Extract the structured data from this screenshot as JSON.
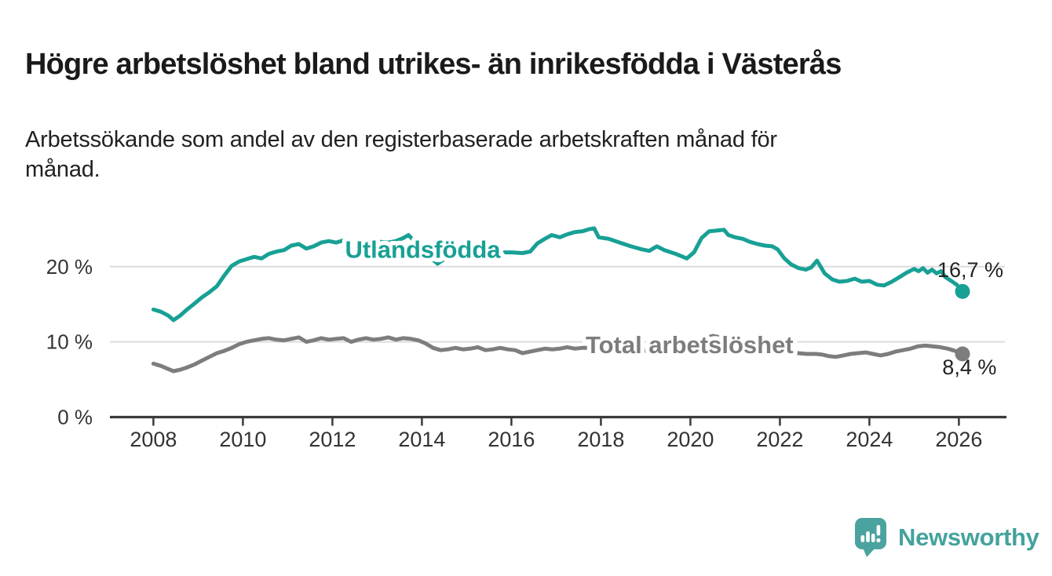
{
  "page": {
    "title": "Högre arbetslöshet bland utrikes- än inrikesfödda i Västerås",
    "subtitle": "Arbetssökande som andel av den registerbaserade arbetskraften månad för månad."
  },
  "footer": {
    "brand": "Newsworthy",
    "logo_icon": "bar-chart-speech-bubble-icon",
    "brand_color": "#45a29d",
    "logo_fill": "#4ba39f"
  },
  "chart_data": {
    "type": "line",
    "title": "Högre arbetslöshet bland utrikes- än inrikesfödda i Västerås",
    "subtitle": "Arbetssökande som andel av den registerbaserade arbetskraften månad för månad.",
    "grid": "horizontal",
    "legend_position": "inline-on-line",
    "x_axis": {
      "range": [
        2007.0,
        2027.1
      ],
      "ticks": [
        2008,
        2010,
        2012,
        2014,
        2016,
        2018,
        2020,
        2022,
        2024,
        2026
      ]
    },
    "y_axis": {
      "range": [
        0,
        26.3
      ],
      "unit": "%",
      "ticks": [
        {
          "value": 0,
          "label": "0 %"
        },
        {
          "value": 10,
          "label": "10 %"
        },
        {
          "value": 20,
          "label": "20 %"
        }
      ]
    },
    "colors": {
      "axis": "#3b3b3b",
      "gridline": "#dcdcdc",
      "tick_label": "#333333",
      "end_label_text": "#222222"
    },
    "series": [
      {
        "name": "Utlandsfödda",
        "color": "#18a095",
        "label_anchor": {
          "x": 2014.02,
          "y": 21.2
        },
        "end_value": 16.7,
        "end_label": {
          "text": "16,7 %",
          "x": 2025.52,
          "y": 18.6
        },
        "points": [
          [
            2008.0,
            14.3
          ],
          [
            2008.17,
            14.0
          ],
          [
            2008.33,
            13.5
          ],
          [
            2008.45,
            12.9
          ],
          [
            2008.6,
            13.5
          ],
          [
            2008.75,
            14.3
          ],
          [
            2008.92,
            15.1
          ],
          [
            2009.08,
            15.9
          ],
          [
            2009.25,
            16.6
          ],
          [
            2009.42,
            17.4
          ],
          [
            2009.58,
            18.8
          ],
          [
            2009.75,
            20.1
          ],
          [
            2009.92,
            20.7
          ],
          [
            2010.08,
            21.0
          ],
          [
            2010.25,
            21.3
          ],
          [
            2010.42,
            21.1
          ],
          [
            2010.58,
            21.7
          ],
          [
            2010.75,
            22.0
          ],
          [
            2010.92,
            22.2
          ],
          [
            2011.08,
            22.8
          ],
          [
            2011.25,
            23.0
          ],
          [
            2011.42,
            22.4
          ],
          [
            2011.58,
            22.7
          ],
          [
            2011.75,
            23.2
          ],
          [
            2011.92,
            23.4
          ],
          [
            2012.08,
            23.2
          ],
          [
            2012.25,
            23.5
          ],
          [
            2012.42,
            23.3
          ],
          [
            2012.58,
            23.4
          ],
          [
            2012.75,
            23.3
          ],
          [
            2012.92,
            23.4
          ],
          [
            2013.08,
            23.3
          ],
          [
            2013.25,
            23.2
          ],
          [
            2013.42,
            23.4
          ],
          [
            2013.58,
            23.8
          ],
          [
            2013.7,
            24.2
          ],
          [
            2013.83,
            23.4
          ],
          [
            2014.0,
            22.4
          ],
          [
            2014.17,
            21.3
          ],
          [
            2014.35,
            20.4
          ],
          [
            2014.5,
            21.0
          ],
          [
            2014.67,
            21.6
          ],
          [
            2014.83,
            21.9
          ],
          [
            2015.0,
            22.0
          ],
          [
            2015.25,
            21.9
          ],
          [
            2015.5,
            21.8
          ],
          [
            2015.75,
            21.9
          ],
          [
            2016.0,
            21.9
          ],
          [
            2016.25,
            21.8
          ],
          [
            2016.42,
            22.0
          ],
          [
            2016.58,
            23.1
          ],
          [
            2016.75,
            23.7
          ],
          [
            2016.9,
            24.2
          ],
          [
            2017.08,
            23.9
          ],
          [
            2017.25,
            24.3
          ],
          [
            2017.42,
            24.6
          ],
          [
            2017.58,
            24.7
          ],
          [
            2017.75,
            25.0
          ],
          [
            2017.85,
            25.1
          ],
          [
            2017.95,
            23.9
          ],
          [
            2018.17,
            23.7
          ],
          [
            2018.42,
            23.2
          ],
          [
            2018.67,
            22.7
          ],
          [
            2018.92,
            22.3
          ],
          [
            2019.08,
            22.1
          ],
          [
            2019.25,
            22.7
          ],
          [
            2019.42,
            22.2
          ],
          [
            2019.67,
            21.7
          ],
          [
            2019.92,
            21.1
          ],
          [
            2020.08,
            21.9
          ],
          [
            2020.25,
            23.8
          ],
          [
            2020.42,
            24.7
          ],
          [
            2020.6,
            24.8
          ],
          [
            2020.75,
            24.9
          ],
          [
            2020.85,
            24.2
          ],
          [
            2021.0,
            23.9
          ],
          [
            2021.17,
            23.7
          ],
          [
            2021.33,
            23.3
          ],
          [
            2021.5,
            23.0
          ],
          [
            2021.67,
            22.8
          ],
          [
            2021.83,
            22.7
          ],
          [
            2021.95,
            22.3
          ],
          [
            2022.1,
            21.1
          ],
          [
            2022.25,
            20.3
          ],
          [
            2022.42,
            19.8
          ],
          [
            2022.58,
            19.6
          ],
          [
            2022.7,
            19.9
          ],
          [
            2022.83,
            20.8
          ],
          [
            2023.0,
            19.1
          ],
          [
            2023.17,
            18.3
          ],
          [
            2023.33,
            18.0
          ],
          [
            2023.5,
            18.1
          ],
          [
            2023.67,
            18.4
          ],
          [
            2023.83,
            18.0
          ],
          [
            2024.0,
            18.1
          ],
          [
            2024.17,
            17.6
          ],
          [
            2024.33,
            17.5
          ],
          [
            2024.5,
            18.0
          ],
          [
            2024.67,
            18.6
          ],
          [
            2024.83,
            19.2
          ],
          [
            2025.0,
            19.7
          ],
          [
            2025.1,
            19.4
          ],
          [
            2025.2,
            19.8
          ],
          [
            2025.3,
            19.2
          ],
          [
            2025.4,
            19.6
          ],
          [
            2025.5,
            19.1
          ],
          [
            2025.6,
            19.4
          ],
          [
            2025.7,
            18.6
          ],
          [
            2025.83,
            18.1
          ],
          [
            2025.95,
            17.6
          ],
          [
            2026.08,
            16.7
          ]
        ]
      },
      {
        "name": "Total arbetslöshet",
        "color": "#7d7d7d",
        "label_anchor": {
          "x": 2019.98,
          "y": 8.5
        },
        "end_value": 8.4,
        "end_label": {
          "text": "8,4 %",
          "x": 2025.63,
          "y": 5.7
        },
        "points": [
          [
            2008.0,
            7.1
          ],
          [
            2008.17,
            6.8
          ],
          [
            2008.33,
            6.4
          ],
          [
            2008.45,
            6.1
          ],
          [
            2008.6,
            6.3
          ],
          [
            2008.75,
            6.6
          ],
          [
            2008.92,
            7.0
          ],
          [
            2009.08,
            7.5
          ],
          [
            2009.25,
            8.0
          ],
          [
            2009.42,
            8.5
          ],
          [
            2009.58,
            8.8
          ],
          [
            2009.75,
            9.2
          ],
          [
            2009.92,
            9.7
          ],
          [
            2010.08,
            10.0
          ],
          [
            2010.25,
            10.2
          ],
          [
            2010.42,
            10.4
          ],
          [
            2010.58,
            10.5
          ],
          [
            2010.75,
            10.3
          ],
          [
            2010.92,
            10.2
          ],
          [
            2011.08,
            10.4
          ],
          [
            2011.25,
            10.6
          ],
          [
            2011.42,
            10.0
          ],
          [
            2011.58,
            10.2
          ],
          [
            2011.75,
            10.5
          ],
          [
            2011.92,
            10.3
          ],
          [
            2012.08,
            10.4
          ],
          [
            2012.25,
            10.5
          ],
          [
            2012.42,
            10.0
          ],
          [
            2012.58,
            10.3
          ],
          [
            2012.75,
            10.5
          ],
          [
            2012.92,
            10.3
          ],
          [
            2013.08,
            10.4
          ],
          [
            2013.25,
            10.6
          ],
          [
            2013.42,
            10.3
          ],
          [
            2013.58,
            10.5
          ],
          [
            2013.75,
            10.4
          ],
          [
            2013.92,
            10.2
          ],
          [
            2014.08,
            9.8
          ],
          [
            2014.25,
            9.2
          ],
          [
            2014.42,
            8.9
          ],
          [
            2014.58,
            9.0
          ],
          [
            2014.75,
            9.2
          ],
          [
            2014.92,
            9.0
          ],
          [
            2015.08,
            9.1
          ],
          [
            2015.25,
            9.3
          ],
          [
            2015.42,
            8.9
          ],
          [
            2015.58,
            9.0
          ],
          [
            2015.75,
            9.2
          ],
          [
            2015.92,
            9.0
          ],
          [
            2016.08,
            8.9
          ],
          [
            2016.25,
            8.5
          ],
          [
            2016.42,
            8.7
          ],
          [
            2016.58,
            8.9
          ],
          [
            2016.75,
            9.1
          ],
          [
            2016.92,
            9.0
          ],
          [
            2017.08,
            9.1
          ],
          [
            2017.25,
            9.3
          ],
          [
            2017.42,
            9.1
          ],
          [
            2017.58,
            9.2
          ],
          [
            2017.75,
            9.2
          ],
          [
            2017.92,
            9.1
          ],
          [
            2018.08,
            9.2
          ],
          [
            2018.33,
            9.1
          ],
          [
            2018.58,
            9.0
          ],
          [
            2018.83,
            8.9
          ],
          [
            2019.08,
            8.8
          ],
          [
            2019.33,
            8.9
          ],
          [
            2019.58,
            9.0
          ],
          [
            2019.83,
            9.1
          ],
          [
            2020.0,
            9.3
          ],
          [
            2020.17,
            9.9
          ],
          [
            2020.33,
            10.5
          ],
          [
            2020.5,
            10.8
          ],
          [
            2020.67,
            10.6
          ],
          [
            2020.83,
            10.3
          ],
          [
            2021.0,
            10.0
          ],
          [
            2021.2,
            9.6
          ],
          [
            2021.4,
            9.2
          ],
          [
            2021.6,
            8.9
          ],
          [
            2021.8,
            8.8
          ],
          [
            2022.0,
            8.7
          ],
          [
            2022.2,
            8.6
          ],
          [
            2022.4,
            8.5
          ],
          [
            2022.6,
            8.4
          ],
          [
            2022.8,
            8.4
          ],
          [
            2022.95,
            8.3
          ],
          [
            2023.1,
            8.1
          ],
          [
            2023.25,
            8.0
          ],
          [
            2023.42,
            8.2
          ],
          [
            2023.58,
            8.4
          ],
          [
            2023.75,
            8.5
          ],
          [
            2023.92,
            8.6
          ],
          [
            2024.08,
            8.4
          ],
          [
            2024.25,
            8.2
          ],
          [
            2024.42,
            8.4
          ],
          [
            2024.58,
            8.7
          ],
          [
            2024.75,
            8.9
          ],
          [
            2024.92,
            9.1
          ],
          [
            2025.08,
            9.4
          ],
          [
            2025.25,
            9.5
          ],
          [
            2025.42,
            9.4
          ],
          [
            2025.58,
            9.3
          ],
          [
            2025.75,
            9.1
          ],
          [
            2025.92,
            8.8
          ],
          [
            2026.08,
            8.4
          ]
        ]
      }
    ]
  }
}
